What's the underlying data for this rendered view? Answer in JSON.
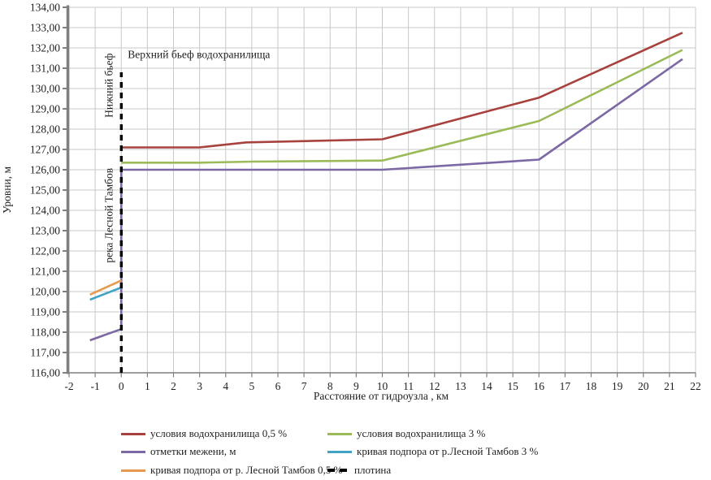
{
  "chart_data": {
    "type": "line",
    "title": "",
    "xlabel": "Расстояние от гидроузла , км",
    "ylabel": "Уровни, м",
    "xlim": [
      -2,
      22
    ],
    "ylim": [
      116,
      134
    ],
    "x_tick_step": 1,
    "y_tick_step": 1,
    "y_tick_decimal_separator": ",",
    "grid": true,
    "legend_position": "bottom",
    "legend_columns": 2,
    "annotations": [
      {
        "text": "Верхний бьеф водохранилища",
        "x": 0.25,
        "y": 131.5,
        "rotate": 0
      },
      {
        "text": "Нижний бьеф",
        "x": -0.47,
        "y": 130.15,
        "rotate": -90
      },
      {
        "text": "река Лесной Тамбов",
        "x": -0.47,
        "y": 123.75,
        "rotate": -90
      }
    ],
    "series": [
      {
        "name": "условия водохранилища 0,5 %",
        "color": "#A8423E",
        "style": "solid",
        "points": [
          [
            0,
            127.1
          ],
          [
            3,
            127.1
          ],
          [
            4.8,
            127.35
          ],
          [
            10,
            127.5
          ],
          [
            16,
            129.55
          ],
          [
            21.5,
            132.75
          ]
        ]
      },
      {
        "name": "условия водохранилища 3 %",
        "color": "#9BBB59",
        "style": "solid",
        "points": [
          [
            0,
            126.35
          ],
          [
            3,
            126.35
          ],
          [
            5,
            126.4
          ],
          [
            10,
            126.45
          ],
          [
            16,
            128.4
          ],
          [
            21.5,
            131.9
          ]
        ]
      },
      {
        "name": "отметки межени, м",
        "color": "#7C68A4",
        "style": "solid",
        "points": [
          [
            -1.2,
            117.6
          ],
          [
            0,
            118.15
          ],
          [
            0,
            126.0
          ],
          [
            10,
            126.0
          ],
          [
            16,
            126.5
          ],
          [
            21.5,
            131.45
          ]
        ]
      },
      {
        "name": "кривая подпора от р.Лесной Тамбов 3 %",
        "color": "#41A3C4",
        "style": "solid",
        "points": [
          [
            -1.2,
            119.6
          ],
          [
            0,
            120.2
          ]
        ]
      },
      {
        "name": "кривая подпора от р. Лесной Тамбов 0,5 %",
        "color": "#E59A50",
        "style": "solid",
        "points": [
          [
            -1.2,
            119.85
          ],
          [
            0,
            120.55
          ]
        ]
      },
      {
        "name": "плотина",
        "color": "#000000",
        "style": "dashed",
        "points": [
          [
            0,
            116.0
          ],
          [
            0,
            130.8
          ]
        ]
      }
    ],
    "colors": {
      "grid": "#C9C9C9",
      "axis": "#7F7F7F",
      "text": "#1f1f1f"
    }
  }
}
